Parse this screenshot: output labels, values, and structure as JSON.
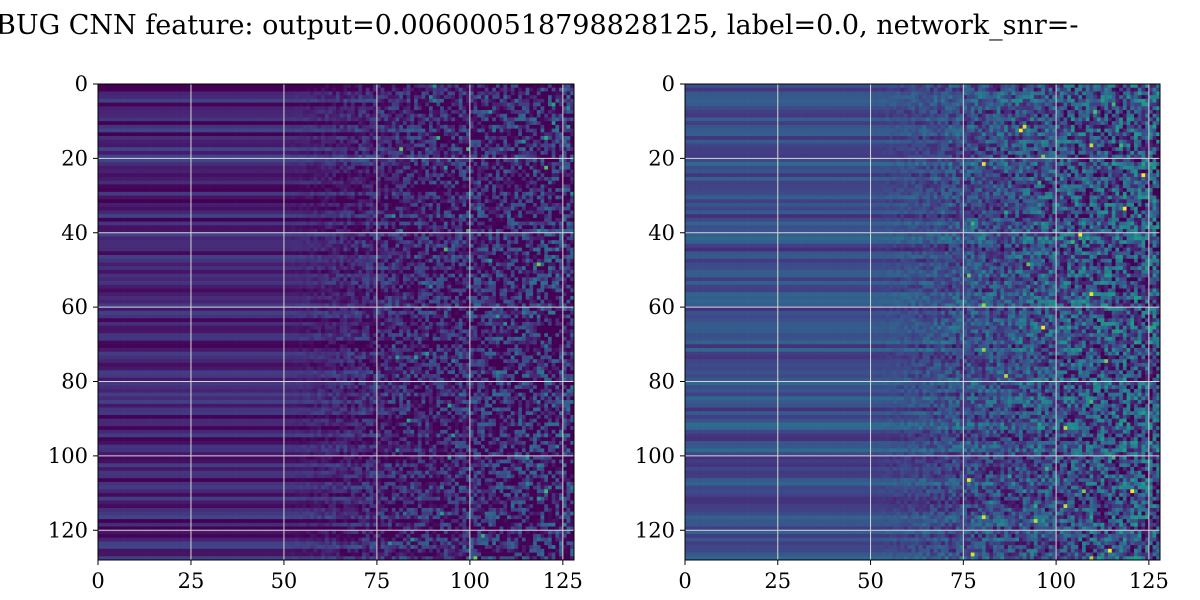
{
  "chart_data": {
    "title": "BUG CNN feature: output=0.006000518798828125, label=0.0, network_snr=-",
    "panels": [
      {
        "name": "",
        "type": "heatmap",
        "colormap": "viridis",
        "x_ticks": [
          0,
          25,
          50,
          75,
          100,
          125
        ],
        "y_ticks": [
          0,
          20,
          40,
          60,
          80,
          100,
          120
        ],
        "xlim": [
          0,
          128
        ],
        "ylim": [
          128,
          0
        ],
        "grid": true
      },
      {
        "name": "",
        "type": "heatmap",
        "colormap": "viridis",
        "x_ticks": [
          0,
          25,
          50,
          75,
          100,
          125
        ],
        "y_ticks": [
          0,
          20,
          40,
          60,
          80,
          100,
          120
        ],
        "xlim": [
          0,
          128
        ],
        "ylim": [
          128,
          0
        ],
        "grid": true
      }
    ]
  }
}
